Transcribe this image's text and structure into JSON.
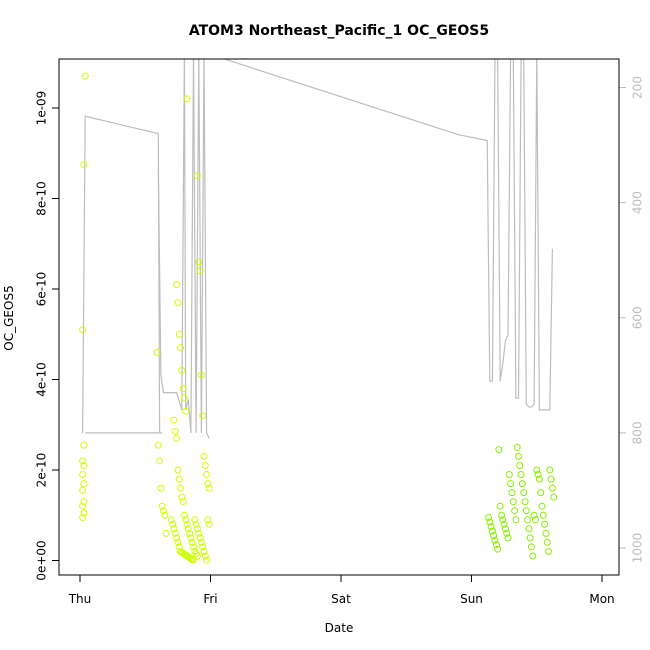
{
  "chart_data": {
    "type": "scatter",
    "title": "ATOM3 Northeast_Pacific_1 OC_GEOS5",
    "xlabel": "Date",
    "ylabel": "OC_GEOS5",
    "xlim_days": [
      -0.1,
      3.9
    ],
    "ylim": [
      -3e-11,
      1.1e-09
    ],
    "x_ticks": [
      {
        "label": "Thu",
        "value": 0
      },
      {
        "label": "Fri",
        "value": 1
      },
      {
        "label": "Sat",
        "value": 2
      },
      {
        "label": "Sun",
        "value": 3
      },
      {
        "label": "Mon",
        "value": 4
      }
    ],
    "y_ticks": [
      {
        "label": "0e+00",
        "value": 0
      },
      {
        "label": "2e-10",
        "value": 2e-10
      },
      {
        "label": "4e-10",
        "value": 4e-10
      },
      {
        "label": "6e-10",
        "value": 6e-10
      },
      {
        "label": "8e-10",
        "value": 8e-10
      },
      {
        "label": "1e-09",
        "value": 1e-09
      }
    ],
    "right_axis": {
      "reversed": true,
      "ticks": [
        {
          "label": "200",
          "value": 200
        },
        {
          "label": "400",
          "value": 400
        },
        {
          "label": "600",
          "value": 600
        },
        {
          "label": "800",
          "value": 800
        },
        {
          "label": "1000",
          "value": 1000
        }
      ],
      "range": [
        142,
        1050
      ]
    },
    "grid": false,
    "colors": {
      "points_early": "#ccff00",
      "points_late": "#88ee00",
      "pressure_line": "#bdbdbd",
      "frame": "#000000"
    },
    "series": [
      {
        "type": "line",
        "points": [
          [
            0.02,
            800
          ],
          [
            0.04,
            250
          ],
          [
            0.6,
            280
          ],
          [
            0.61,
            800
          ],
          [
            0.62,
            800
          ],
          [
            0.63,
            800
          ],
          [
            0.6,
            800
          ],
          [
            0.5,
            800
          ],
          [
            0.4,
            800
          ],
          [
            0.3,
            800
          ],
          [
            0.2,
            800
          ],
          [
            0.1,
            800
          ],
          [
            0.04,
            800
          ]
        ]
      },
      {
        "type": "line",
        "points": [
          [
            0.6,
            340
          ],
          [
            0.62,
            700
          ],
          [
            0.64,
            730
          ],
          [
            0.74,
            730
          ],
          [
            0.76,
            745
          ],
          [
            0.78,
            760
          ],
          [
            0.8,
            142
          ],
          [
            0.81,
            760
          ],
          [
            0.83,
            742
          ],
          [
            0.85,
            800
          ],
          [
            0.87,
            142
          ],
          [
            0.89,
            800
          ],
          [
            0.91,
            142
          ],
          [
            0.93,
            800
          ],
          [
            0.95,
            142
          ],
          [
            0.97,
            800
          ],
          [
            0.99,
            810
          ]
        ]
      },
      {
        "type": "line",
        "points": [
          [
            0.99,
            142
          ],
          [
            2.9,
            282
          ],
          [
            3.12,
            292
          ],
          [
            3.14,
            710
          ],
          [
            3.16,
            710
          ],
          [
            3.18,
            142
          ],
          [
            3.2,
            142
          ],
          [
            3.22,
            710
          ],
          [
            3.24,
            680
          ],
          [
            3.26,
            640
          ],
          [
            3.28,
            630
          ],
          [
            3.3,
            142
          ],
          [
            3.32,
            142
          ],
          [
            3.34,
            740
          ],
          [
            3.36,
            740
          ],
          [
            3.38,
            142
          ],
          [
            3.4,
            142
          ],
          [
            3.42,
            750
          ],
          [
            3.44,
            755
          ],
          [
            3.46,
            755
          ],
          [
            3.48,
            750
          ],
          [
            3.5,
            142
          ],
          [
            3.52,
            760
          ],
          [
            3.54,
            760
          ],
          [
            3.56,
            760
          ],
          [
            3.58,
            760
          ],
          [
            3.6,
            760
          ],
          [
            3.62,
            480
          ]
        ]
      },
      {
        "type": "scatter",
        "name": "early_points",
        "points": [
          [
            0.02,
            2.2e-10
          ],
          [
            0.03,
            2.1e-10
          ],
          [
            0.02,
            1.9e-10
          ],
          [
            0.03,
            1.7e-10
          ],
          [
            0.02,
            1.55e-10
          ],
          [
            0.03,
            1.3e-10
          ],
          [
            0.02,
            1.2e-10
          ],
          [
            0.03,
            1.05e-10
          ],
          [
            0.02,
            9.5e-11
          ],
          [
            0.03,
            2.55e-10
          ],
          [
            0.02,
            5.1e-10
          ],
          [
            0.03,
            8.75e-10
          ],
          [
            0.04,
            1.07e-09
          ],
          [
            0.59,
            4.6e-10
          ],
          [
            0.6,
            2.55e-10
          ],
          [
            0.61,
            2.2e-10
          ],
          [
            0.62,
            1.6e-10
          ],
          [
            0.63,
            1.2e-10
          ],
          [
            0.64,
            1.1e-10
          ],
          [
            0.65,
            1e-10
          ],
          [
            0.66,
            6e-11
          ],
          [
            0.72,
            3.1e-10
          ],
          [
            0.73,
            2.85e-10
          ],
          [
            0.74,
            2.7e-10
          ],
          [
            0.75,
            2e-10
          ],
          [
            0.76,
            1.8e-10
          ],
          [
            0.77,
            1.6e-10
          ],
          [
            0.78,
            1.4e-10
          ],
          [
            0.79,
            1.3e-10
          ],
          [
            0.8,
            1e-10
          ],
          [
            0.81,
            9e-11
          ],
          [
            0.82,
            8e-11
          ],
          [
            0.83,
            7e-11
          ],
          [
            0.84,
            6e-11
          ],
          [
            0.85,
            5e-11
          ],
          [
            0.86,
            4e-11
          ],
          [
            0.87,
            3e-11
          ],
          [
            0.88,
            2e-11
          ],
          [
            0.89,
            1.5e-11
          ],
          [
            0.9,
            1e-11
          ],
          [
            0.74,
            6.1e-10
          ],
          [
            0.75,
            5.7e-10
          ],
          [
            0.76,
            5e-10
          ],
          [
            0.77,
            4.7e-10
          ],
          [
            0.78,
            4.2e-10
          ],
          [
            0.79,
            3.8e-10
          ],
          [
            0.8,
            3.6e-10
          ],
          [
            0.81,
            3.3e-10
          ],
          [
            0.82,
            1.02e-09
          ],
          [
            0.9,
            8.5e-10
          ],
          [
            0.91,
            6.6e-10
          ],
          [
            0.92,
            6.4e-10
          ],
          [
            0.93,
            4.1e-10
          ],
          [
            0.94,
            3.2e-10
          ],
          [
            0.95,
            2.3e-10
          ],
          [
            0.96,
            2.1e-10
          ],
          [
            0.97,
            1.9e-10
          ],
          [
            0.98,
            1.7e-10
          ],
          [
            0.99,
            1.6e-10
          ],
          [
            0.7,
            9e-11
          ],
          [
            0.71,
            8e-11
          ],
          [
            0.72,
            7e-11
          ],
          [
            0.73,
            6e-11
          ],
          [
            0.74,
            5e-11
          ],
          [
            0.75,
            4e-11
          ],
          [
            0.76,
            3e-11
          ],
          [
            0.77,
            2e-11
          ],
          [
            0.78,
            1.8e-11
          ],
          [
            0.79,
            1.6e-11
          ],
          [
            0.8,
            1.4e-11
          ],
          [
            0.81,
            1.2e-11
          ],
          [
            0.82,
            1e-11
          ],
          [
            0.83,
            8e-12
          ],
          [
            0.84,
            6e-12
          ],
          [
            0.85,
            4e-12
          ],
          [
            0.86,
            2e-12
          ],
          [
            0.87,
            1e-12
          ],
          [
            0.88,
            9e-11
          ],
          [
            0.89,
            8e-11
          ],
          [
            0.9,
            7e-11
          ],
          [
            0.91,
            6e-11
          ],
          [
            0.92,
            5e-11
          ],
          [
            0.93,
            4e-11
          ],
          [
            0.94,
            3e-11
          ],
          [
            0.95,
            2e-11
          ],
          [
            0.96,
            1e-11
          ],
          [
            0.97,
            1e-12
          ],
          [
            0.98,
            9e-11
          ],
          [
            0.99,
            8e-11
          ]
        ]
      },
      {
        "type": "scatter",
        "name": "late_points",
        "points": [
          [
            3.13,
            9.5e-11
          ],
          [
            3.14,
            8.5e-11
          ],
          [
            3.15,
            7.5e-11
          ],
          [
            3.16,
            6.5e-11
          ],
          [
            3.17,
            5.5e-11
          ],
          [
            3.18,
            4.5e-11
          ],
          [
            3.19,
            3.5e-11
          ],
          [
            3.2,
            2.5e-11
          ],
          [
            3.21,
            2.45e-10
          ],
          [
            3.22,
            1.2e-10
          ],
          [
            3.23,
            1e-10
          ],
          [
            3.24,
            9e-11
          ],
          [
            3.25,
            8e-11
          ],
          [
            3.26,
            7e-11
          ],
          [
            3.27,
            6e-11
          ],
          [
            3.28,
            5e-11
          ],
          [
            3.29,
            1.9e-10
          ],
          [
            3.3,
            1.7e-10
          ],
          [
            3.31,
            1.5e-10
          ],
          [
            3.32,
            1.3e-10
          ],
          [
            3.33,
            1.1e-10
          ],
          [
            3.34,
            9e-11
          ],
          [
            3.35,
            2.5e-10
          ],
          [
            3.36,
            2.3e-10
          ],
          [
            3.37,
            2.1e-10
          ],
          [
            3.38,
            1.9e-10
          ],
          [
            3.39,
            1.7e-10
          ],
          [
            3.4,
            1.5e-10
          ],
          [
            3.41,
            1.3e-10
          ],
          [
            3.42,
            1.1e-10
          ],
          [
            3.43,
            9e-11
          ],
          [
            3.44,
            7e-11
          ],
          [
            3.45,
            5e-11
          ],
          [
            3.46,
            3e-11
          ],
          [
            3.47,
            1e-11
          ],
          [
            3.48,
            1e-10
          ],
          [
            3.49,
            9e-11
          ],
          [
            3.5,
            2e-10
          ],
          [
            3.51,
            1.9e-10
          ],
          [
            3.52,
            1.8e-10
          ],
          [
            3.53,
            1.5e-10
          ],
          [
            3.54,
            1.2e-10
          ],
          [
            3.55,
            1e-10
          ],
          [
            3.56,
            8e-11
          ],
          [
            3.57,
            6e-11
          ],
          [
            3.58,
            4e-11
          ],
          [
            3.59,
            2e-11
          ],
          [
            3.6,
            2e-10
          ],
          [
            3.61,
            1.8e-10
          ],
          [
            3.62,
            1.6e-10
          ],
          [
            3.63,
            1.4e-10
          ]
        ]
      }
    ]
  }
}
